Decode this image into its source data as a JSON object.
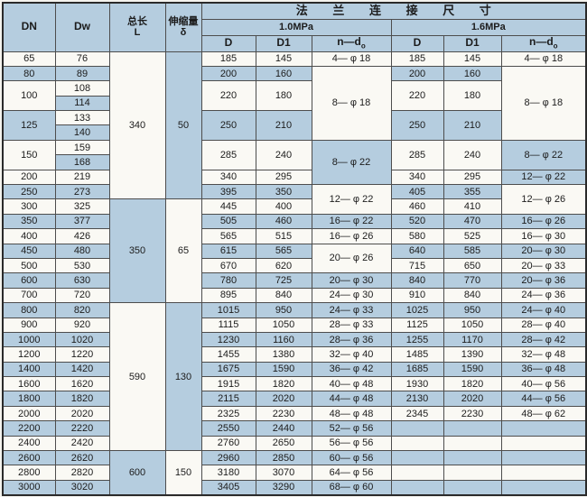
{
  "header": {
    "dn": "DN",
    "dw": "Dw",
    "length": "总长",
    "length_sub": "L",
    "expansion": "伸缩量",
    "expansion_sub": "δ",
    "flange_title": "法 兰 连 接 尺 寸",
    "pressure_1": "1.0MPa",
    "pressure_2": "1.6MPa",
    "d": "D",
    "d1": "D1",
    "nd": "n—d",
    "nd_sub": "o"
  },
  "colors": {
    "row_blue": "#b5cddf",
    "row_white": "#faf9f4",
    "border": "#4d4d4d"
  },
  "table": {
    "rows": [
      [
        {
          "t": "65",
          "bg": "w"
        },
        {
          "t": "76",
          "bg": "w"
        },
        {
          "t": "340",
          "rs": 10,
          "bg": "w"
        },
        {
          "t": "50",
          "rs": 10,
          "bg": "b"
        },
        {
          "t": "185",
          "bg": "w"
        },
        {
          "t": "145",
          "bg": "w"
        },
        {
          "t": "4— φ 18",
          "bg": "w"
        },
        {
          "t": "185",
          "bg": "w"
        },
        {
          "t": "145",
          "bg": "w"
        },
        {
          "t": "4— φ 18",
          "bg": "w"
        }
      ],
      [
        {
          "t": "80",
          "bg": "b"
        },
        {
          "t": "89",
          "bg": "b"
        },
        {
          "t": "200",
          "bg": "b"
        },
        {
          "t": "160",
          "bg": "b"
        },
        {
          "t": "8— φ 18",
          "rs": 5,
          "bg": "w"
        },
        {
          "t": "200",
          "bg": "b"
        },
        {
          "t": "160",
          "bg": "b"
        },
        {
          "t": "8— φ 18",
          "rs": 5,
          "bg": "w"
        }
      ],
      [
        {
          "t": "100",
          "rs": 2,
          "bg": "w"
        },
        {
          "t": "108",
          "bg": "w"
        },
        {
          "t": "220",
          "rs": 2,
          "bg": "w"
        },
        {
          "t": "180",
          "rs": 2,
          "bg": "w"
        },
        {
          "t": "220",
          "rs": 2,
          "bg": "w"
        },
        {
          "t": "180",
          "rs": 2,
          "bg": "w"
        }
      ],
      [
        {
          "t": "114",
          "bg": "b"
        }
      ],
      [
        {
          "t": "125",
          "rs": 2,
          "bg": "b"
        },
        {
          "t": "133",
          "bg": "w"
        },
        {
          "t": "250",
          "rs": 2,
          "bg": "b"
        },
        {
          "t": "210",
          "rs": 2,
          "bg": "b"
        },
        {
          "t": "250",
          "rs": 2,
          "bg": "b"
        },
        {
          "t": "210",
          "rs": 2,
          "bg": "b"
        }
      ],
      [
        {
          "t": "140",
          "bg": "b"
        }
      ],
      [
        {
          "t": "150",
          "rs": 2,
          "bg": "w"
        },
        {
          "t": "159",
          "bg": "w"
        },
        {
          "t": "285",
          "rs": 2,
          "bg": "w"
        },
        {
          "t": "240",
          "rs": 2,
          "bg": "w"
        },
        {
          "t": "8— φ 22",
          "rs": 3,
          "bg": "b"
        },
        {
          "t": "285",
          "rs": 2,
          "bg": "w"
        },
        {
          "t": "240",
          "rs": 2,
          "bg": "w"
        },
        {
          "t": "8— φ 22",
          "rs": 2,
          "bg": "b"
        }
      ],
      [
        {
          "t": "168",
          "bg": "b"
        }
      ],
      [
        {
          "t": "200",
          "bg": "w"
        },
        {
          "t": "219",
          "bg": "w"
        },
        {
          "t": "340",
          "bg": "w"
        },
        {
          "t": "295",
          "bg": "w"
        },
        {
          "t": "340",
          "bg": "w"
        },
        {
          "t": "295",
          "bg": "w"
        },
        {
          "t": "12— φ 22",
          "bg": "b"
        }
      ],
      [
        {
          "t": "250",
          "bg": "b"
        },
        {
          "t": "273",
          "bg": "b"
        },
        {
          "t": "395",
          "bg": "b"
        },
        {
          "t": "350",
          "bg": "b"
        },
        {
          "t": "12— φ 22",
          "rs": 2,
          "bg": "w"
        },
        {
          "t": "405",
          "bg": "b"
        },
        {
          "t": "355",
          "bg": "b"
        },
        {
          "t": "12— φ 26",
          "rs": 2,
          "bg": "w"
        }
      ],
      [
        {
          "t": "300",
          "bg": "w"
        },
        {
          "t": "325",
          "bg": "w"
        },
        {
          "t": "350",
          "rs": 7,
          "bg": "b"
        },
        {
          "t": "65",
          "rs": 7,
          "bg": "w"
        },
        {
          "t": "445",
          "bg": "w"
        },
        {
          "t": "400",
          "bg": "w"
        },
        {
          "t": "460",
          "bg": "w"
        },
        {
          "t": "410",
          "bg": "w"
        }
      ],
      [
        {
          "t": "350",
          "bg": "b"
        },
        {
          "t": "377",
          "bg": "b"
        },
        {
          "t": "505",
          "bg": "b"
        },
        {
          "t": "460",
          "bg": "b"
        },
        {
          "t": "16— φ 22",
          "bg": "b"
        },
        {
          "t": "520",
          "bg": "b"
        },
        {
          "t": "470",
          "bg": "b"
        },
        {
          "t": "16— φ 26",
          "bg": "b"
        }
      ],
      [
        {
          "t": "400",
          "bg": "w"
        },
        {
          "t": "426",
          "bg": "w"
        },
        {
          "t": "565",
          "bg": "w"
        },
        {
          "t": "515",
          "bg": "w"
        },
        {
          "t": "16— φ 26",
          "bg": "w"
        },
        {
          "t": "580",
          "bg": "w"
        },
        {
          "t": "525",
          "bg": "w"
        },
        {
          "t": "16— φ 30",
          "bg": "w"
        }
      ],
      [
        {
          "t": "450",
          "bg": "b"
        },
        {
          "t": "480",
          "bg": "b"
        },
        {
          "t": "615",
          "bg": "b"
        },
        {
          "t": "565",
          "bg": "b"
        },
        {
          "t": "20— φ 26",
          "rs": 2,
          "bg": "w"
        },
        {
          "t": "640",
          "bg": "b"
        },
        {
          "t": "585",
          "bg": "b"
        },
        {
          "t": "20— φ 30",
          "bg": "b"
        }
      ],
      [
        {
          "t": "500",
          "bg": "w"
        },
        {
          "t": "530",
          "bg": "w"
        },
        {
          "t": "670",
          "bg": "w"
        },
        {
          "t": "620",
          "bg": "w"
        },
        {
          "t": "715",
          "bg": "w"
        },
        {
          "t": "650",
          "bg": "w"
        },
        {
          "t": "20— φ 33",
          "bg": "w"
        }
      ],
      [
        {
          "t": "600",
          "bg": "b"
        },
        {
          "t": "630",
          "bg": "b"
        },
        {
          "t": "780",
          "bg": "b"
        },
        {
          "t": "725",
          "bg": "b"
        },
        {
          "t": "20— φ 30",
          "bg": "b"
        },
        {
          "t": "840",
          "bg": "b"
        },
        {
          "t": "770",
          "bg": "b"
        },
        {
          "t": "20— φ 36",
          "bg": "b"
        }
      ],
      [
        {
          "t": "700",
          "bg": "w"
        },
        {
          "t": "720",
          "bg": "w"
        },
        {
          "t": "895",
          "bg": "w"
        },
        {
          "t": "840",
          "bg": "w"
        },
        {
          "t": "24— φ 30",
          "bg": "w"
        },
        {
          "t": "910",
          "bg": "w"
        },
        {
          "t": "840",
          "bg": "w"
        },
        {
          "t": "24— φ 36",
          "bg": "w"
        }
      ],
      [
        {
          "t": "800",
          "bg": "b"
        },
        {
          "t": "820",
          "bg": "b"
        },
        {
          "t": "590",
          "rs": 10,
          "bg": "w"
        },
        {
          "t": "130",
          "rs": 10,
          "bg": "b"
        },
        {
          "t": "1015",
          "bg": "b"
        },
        {
          "t": "950",
          "bg": "b"
        },
        {
          "t": "24— φ 33",
          "bg": "b"
        },
        {
          "t": "1025",
          "bg": "b"
        },
        {
          "t": "950",
          "bg": "b"
        },
        {
          "t": "24— φ 40",
          "bg": "b"
        }
      ],
      [
        {
          "t": "900",
          "bg": "w"
        },
        {
          "t": "920",
          "bg": "w"
        },
        {
          "t": "1115",
          "bg": "w"
        },
        {
          "t": "1050",
          "bg": "w"
        },
        {
          "t": "28— φ 33",
          "bg": "w"
        },
        {
          "t": "1125",
          "bg": "w"
        },
        {
          "t": "1050",
          "bg": "w"
        },
        {
          "t": "28— φ 40",
          "bg": "w"
        }
      ],
      [
        {
          "t": "1000",
          "bg": "b"
        },
        {
          "t": "1020",
          "bg": "b"
        },
        {
          "t": "1230",
          "bg": "b"
        },
        {
          "t": "1160",
          "bg": "b"
        },
        {
          "t": "28— φ 36",
          "bg": "b"
        },
        {
          "t": "1255",
          "bg": "b"
        },
        {
          "t": "1170",
          "bg": "b"
        },
        {
          "t": "28— φ 42",
          "bg": "b"
        }
      ],
      [
        {
          "t": "1200",
          "bg": "w"
        },
        {
          "t": "1220",
          "bg": "w"
        },
        {
          "t": "1455",
          "bg": "w"
        },
        {
          "t": "1380",
          "bg": "w"
        },
        {
          "t": "32— φ 40",
          "bg": "w"
        },
        {
          "t": "1485",
          "bg": "w"
        },
        {
          "t": "1390",
          "bg": "w"
        },
        {
          "t": "32— φ 48",
          "bg": "w"
        }
      ],
      [
        {
          "t": "1400",
          "bg": "b"
        },
        {
          "t": "1420",
          "bg": "b"
        },
        {
          "t": "1675",
          "bg": "b"
        },
        {
          "t": "1590",
          "bg": "b"
        },
        {
          "t": "36— φ 42",
          "bg": "b"
        },
        {
          "t": "1685",
          "bg": "b"
        },
        {
          "t": "1590",
          "bg": "b"
        },
        {
          "t": "36— φ 48",
          "bg": "b"
        }
      ],
      [
        {
          "t": "1600",
          "bg": "w"
        },
        {
          "t": "1620",
          "bg": "w"
        },
        {
          "t": "1915",
          "bg": "w"
        },
        {
          "t": "1820",
          "bg": "w"
        },
        {
          "t": "40— φ 48",
          "bg": "w"
        },
        {
          "t": "1930",
          "bg": "w"
        },
        {
          "t": "1820",
          "bg": "w"
        },
        {
          "t": "40— φ 56",
          "bg": "w"
        }
      ],
      [
        {
          "t": "1800",
          "bg": "b"
        },
        {
          "t": "1820",
          "bg": "b"
        },
        {
          "t": "2115",
          "bg": "b"
        },
        {
          "t": "2020",
          "bg": "b"
        },
        {
          "t": "44— φ 48",
          "bg": "b"
        },
        {
          "t": "2130",
          "bg": "b"
        },
        {
          "t": "2020",
          "bg": "b"
        },
        {
          "t": "44— φ 56",
          "bg": "b"
        }
      ],
      [
        {
          "t": "2000",
          "bg": "w"
        },
        {
          "t": "2020",
          "bg": "w"
        },
        {
          "t": "2325",
          "bg": "w"
        },
        {
          "t": "2230",
          "bg": "w"
        },
        {
          "t": "48— φ 48",
          "bg": "w"
        },
        {
          "t": "2345",
          "bg": "w"
        },
        {
          "t": "2230",
          "bg": "w"
        },
        {
          "t": "48— φ 62",
          "bg": "w"
        }
      ],
      [
        {
          "t": "2200",
          "bg": "b"
        },
        {
          "t": "2220",
          "bg": "b"
        },
        {
          "t": "2550",
          "bg": "b"
        },
        {
          "t": "2440",
          "bg": "b"
        },
        {
          "t": "52— φ 56",
          "bg": "b"
        },
        {
          "t": "",
          "bg": "b"
        },
        {
          "t": "",
          "bg": "b"
        },
        {
          "t": "",
          "bg": "b"
        }
      ],
      [
        {
          "t": "2400",
          "bg": "w"
        },
        {
          "t": "2420",
          "bg": "w"
        },
        {
          "t": "2760",
          "bg": "w"
        },
        {
          "t": "2650",
          "bg": "w"
        },
        {
          "t": "56— φ 56",
          "bg": "w"
        },
        {
          "t": "",
          "bg": "w"
        },
        {
          "t": "",
          "bg": "w"
        },
        {
          "t": "",
          "bg": "w"
        }
      ],
      [
        {
          "t": "2600",
          "bg": "b"
        },
        {
          "t": "2620",
          "bg": "b"
        },
        {
          "t": "600",
          "rs": 3,
          "bg": "b"
        },
        {
          "t": "150",
          "rs": 3,
          "bg": "w"
        },
        {
          "t": "2960",
          "bg": "b"
        },
        {
          "t": "2850",
          "bg": "b"
        },
        {
          "t": "60— φ 56",
          "bg": "b"
        },
        {
          "t": "",
          "bg": "b"
        },
        {
          "t": "",
          "bg": "b"
        },
        {
          "t": "",
          "bg": "b"
        }
      ],
      [
        {
          "t": "2800",
          "bg": "w"
        },
        {
          "t": "2820",
          "bg": "w"
        },
        {
          "t": "3180",
          "bg": "w"
        },
        {
          "t": "3070",
          "bg": "w"
        },
        {
          "t": "64— φ 56",
          "bg": "w"
        },
        {
          "t": "",
          "bg": "w"
        },
        {
          "t": "",
          "bg": "w"
        },
        {
          "t": "",
          "bg": "w"
        }
      ],
      [
        {
          "t": "3000",
          "bg": "b"
        },
        {
          "t": "3020",
          "bg": "b"
        },
        {
          "t": "3405",
          "bg": "b"
        },
        {
          "t": "3290",
          "bg": "b"
        },
        {
          "t": "68— φ 60",
          "bg": "b"
        },
        {
          "t": "",
          "bg": "b"
        },
        {
          "t": "",
          "bg": "b"
        },
        {
          "t": "",
          "bg": "b"
        }
      ]
    ]
  }
}
